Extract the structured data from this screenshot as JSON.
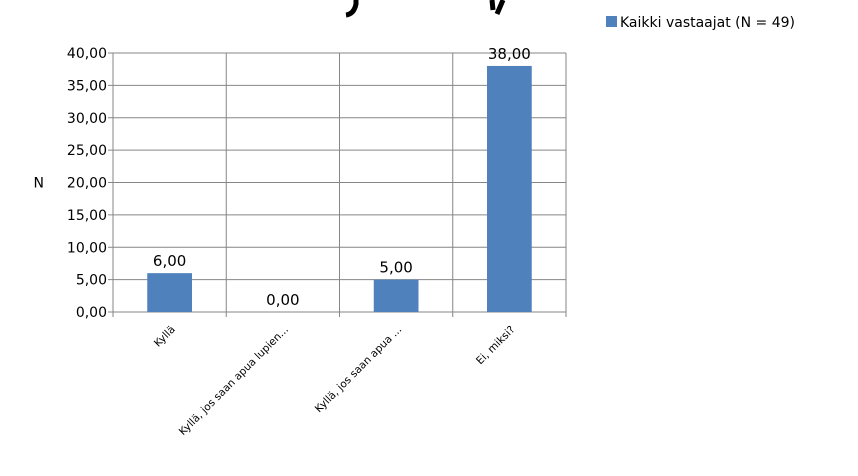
{
  "chart_data": {
    "type": "bar",
    "title": "",
    "xlabel": "",
    "ylabel": "N",
    "ylim": [
      0,
      40
    ],
    "yticks": [
      "0,00",
      "5,00",
      "10,00",
      "15,00",
      "20,00",
      "25,00",
      "30,00",
      "35,00",
      "40,00"
    ],
    "categories": [
      "Kyllä",
      "Kyllä, jos saan apua lupien...",
      "Kyllä, jos saan apua ...",
      "Ei, miksi?"
    ],
    "series": [
      {
        "name": "Kaikki vastaajat (N = 49)",
        "values": [
          6,
          0,
          5,
          38
        ],
        "labels": [
          "6,00",
          "0,00",
          "5,00",
          "38,00"
        ],
        "color": "#4f81bd"
      }
    ],
    "grid": true,
    "legend": "top-right"
  }
}
